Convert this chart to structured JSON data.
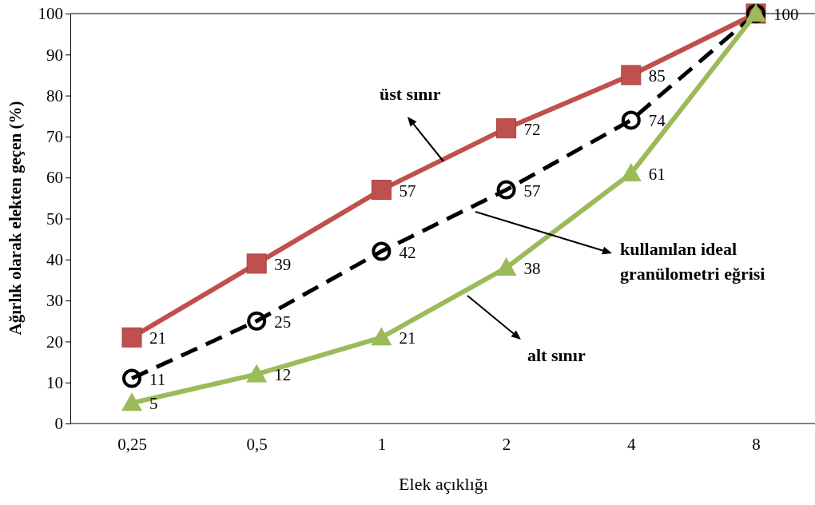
{
  "chart_data": {
    "type": "line",
    "xlabel": "Elek açıklığı",
    "ylabel": "Ağırlık olarak elekten geçen (%)",
    "categories": [
      "0,25",
      "0,5",
      "1",
      "2",
      "4",
      "8"
    ],
    "annotations": [
      "üst sınır",
      "kullanılan ideal granülometri eğrisi",
      "alt sınır"
    ],
    "ylim": [
      0,
      100
    ],
    "yticks": [
      0,
      10,
      20,
      30,
      40,
      50,
      60,
      70,
      80,
      90,
      100
    ],
    "grid": false,
    "series": [
      {
        "color": "#c0504d",
        "marker": "square",
        "line_style": "solid",
        "values": [
          21,
          39,
          57,
          72,
          85,
          100
        ],
        "value_labels": [
          "21",
          "39",
          "57",
          "72",
          "85",
          "100"
        ]
      },
      {
        "color": "#000000",
        "marker": "circle",
        "line_style": "dashed",
        "values": [
          11,
          25,
          42,
          57,
          74,
          100
        ],
        "value_labels": [
          "11",
          "25",
          "42",
          "57",
          "74",
          null
        ]
      },
      {
        "color": "#9bbb59",
        "marker": "triangle",
        "line_style": "solid",
        "values": [
          5,
          12,
          21,
          38,
          61,
          100
        ],
        "value_labels": [
          "5",
          "12",
          "21",
          "38",
          "61",
          null
        ]
      }
    ]
  }
}
